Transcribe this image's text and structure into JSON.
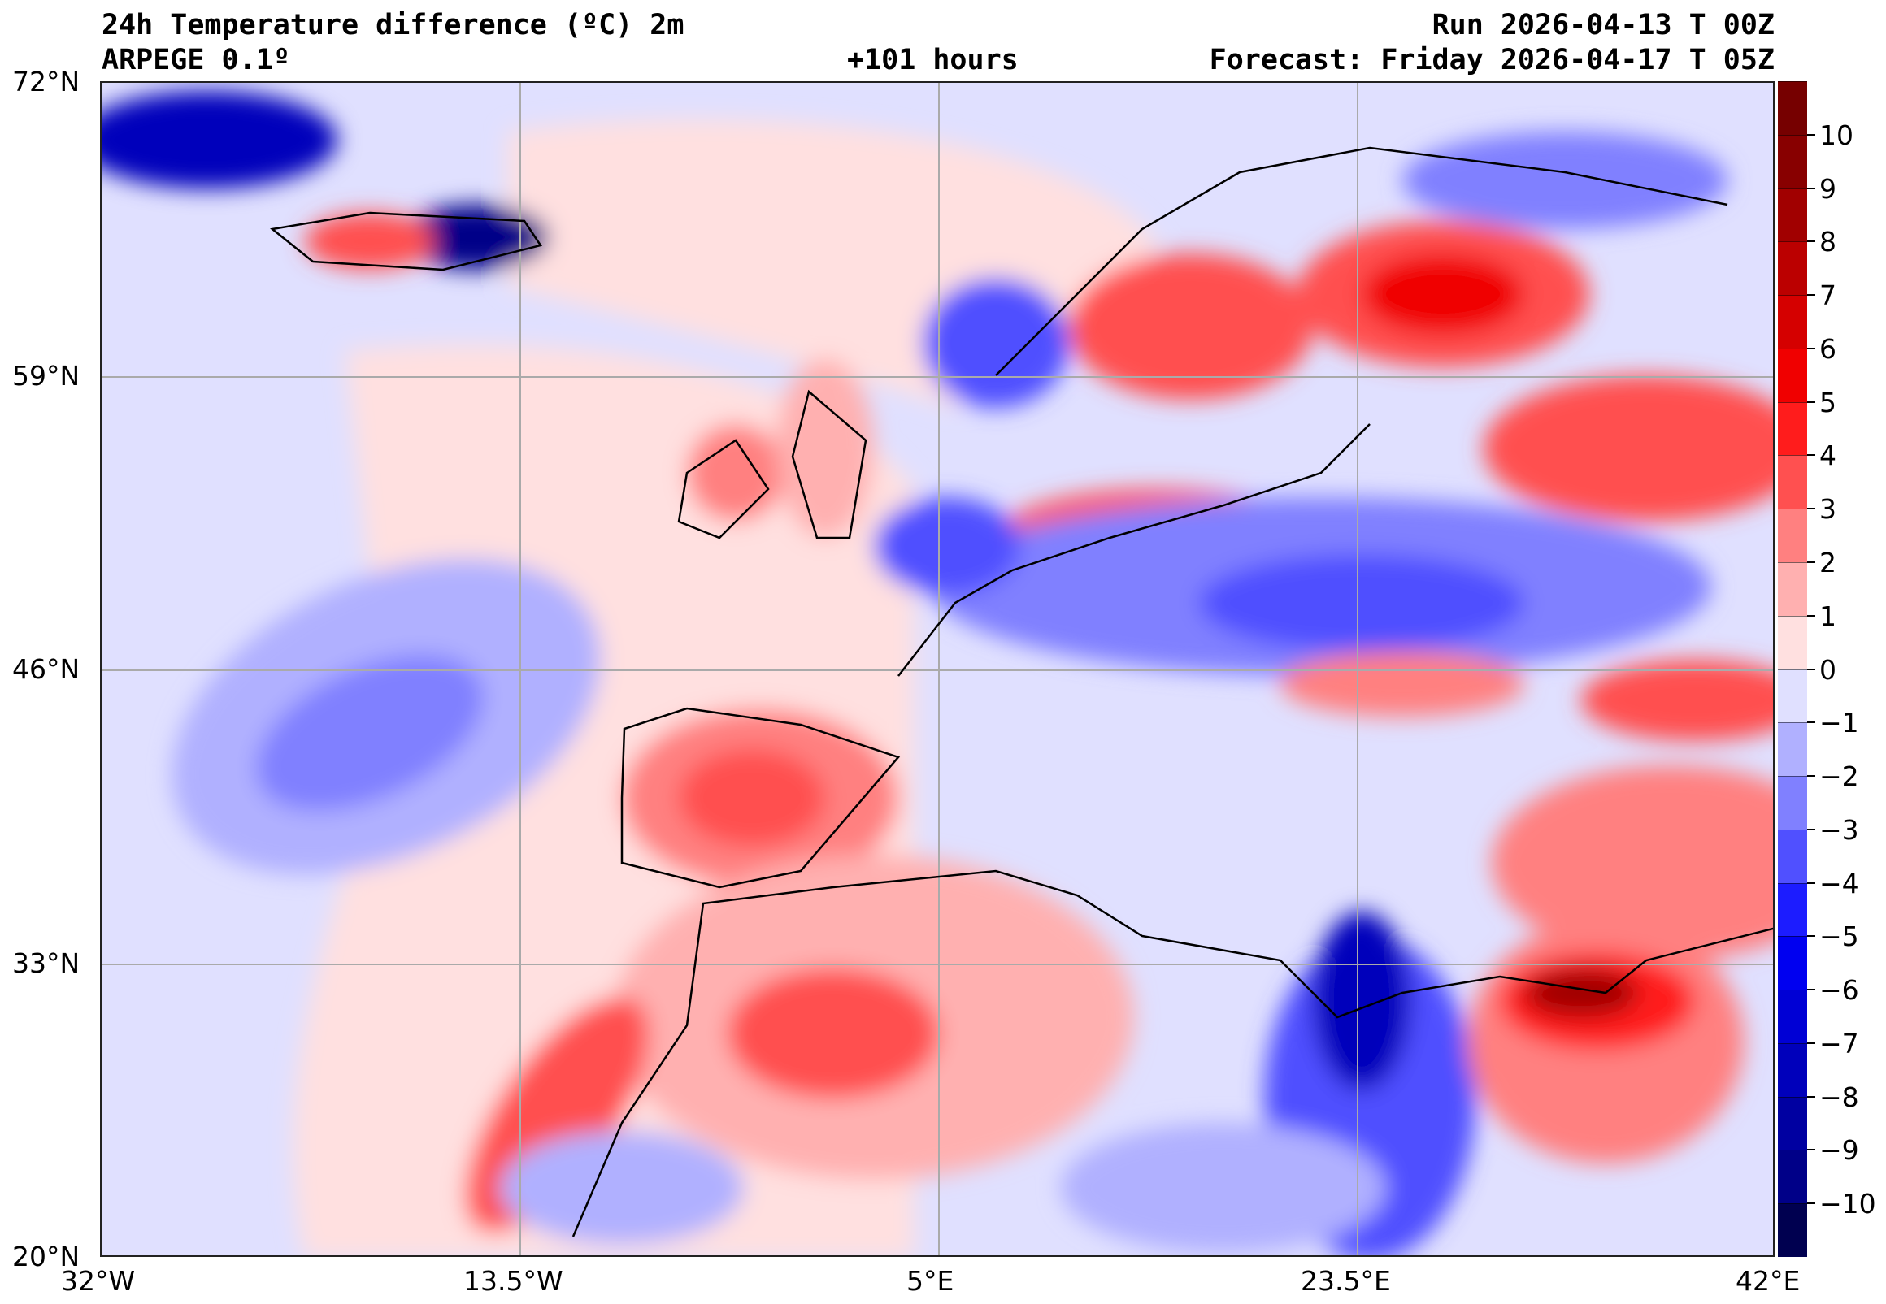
{
  "header": {
    "title": "24h Temperature difference (ºC) 2m",
    "model": "ARPEGE 0.1º",
    "lead_time": "+101 hours",
    "run": "Run 2026-04-13 T 00Z",
    "forecast": "Forecast: Friday 2026-04-17 T 05Z"
  },
  "axes": {
    "lat_labels": [
      "72°N",
      "59°N",
      "46°N",
      "33°N",
      "20°N"
    ],
    "lon_labels": [
      "32°W",
      "13.5°W",
      "5°E",
      "23.5°E",
      "42°E"
    ]
  },
  "colorbar": {
    "range": [
      -11,
      11
    ],
    "tick_labels": [
      "10",
      "9",
      "8",
      "7",
      "6",
      "5",
      "4",
      "3",
      "2",
      "1",
      "0",
      "−1",
      "−2",
      "−3",
      "−4",
      "−5",
      "−6",
      "−7",
      "−8",
      "−9",
      "−10"
    ],
    "colors": [
      "#760000",
      "#880000",
      "#a10000",
      "#bb0000",
      "#d50000",
      "#f00000",
      "#ff1c1c",
      "#ff5050",
      "#ff8080",
      "#ffb0b0",
      "#ffe0e0",
      "#e0e0ff",
      "#b0b0ff",
      "#8080ff",
      "#5050ff",
      "#1c1cff",
      "#0000f0",
      "#0000d5",
      "#0000bb",
      "#0000a1",
      "#000088",
      "#000050"
    ]
  }
}
